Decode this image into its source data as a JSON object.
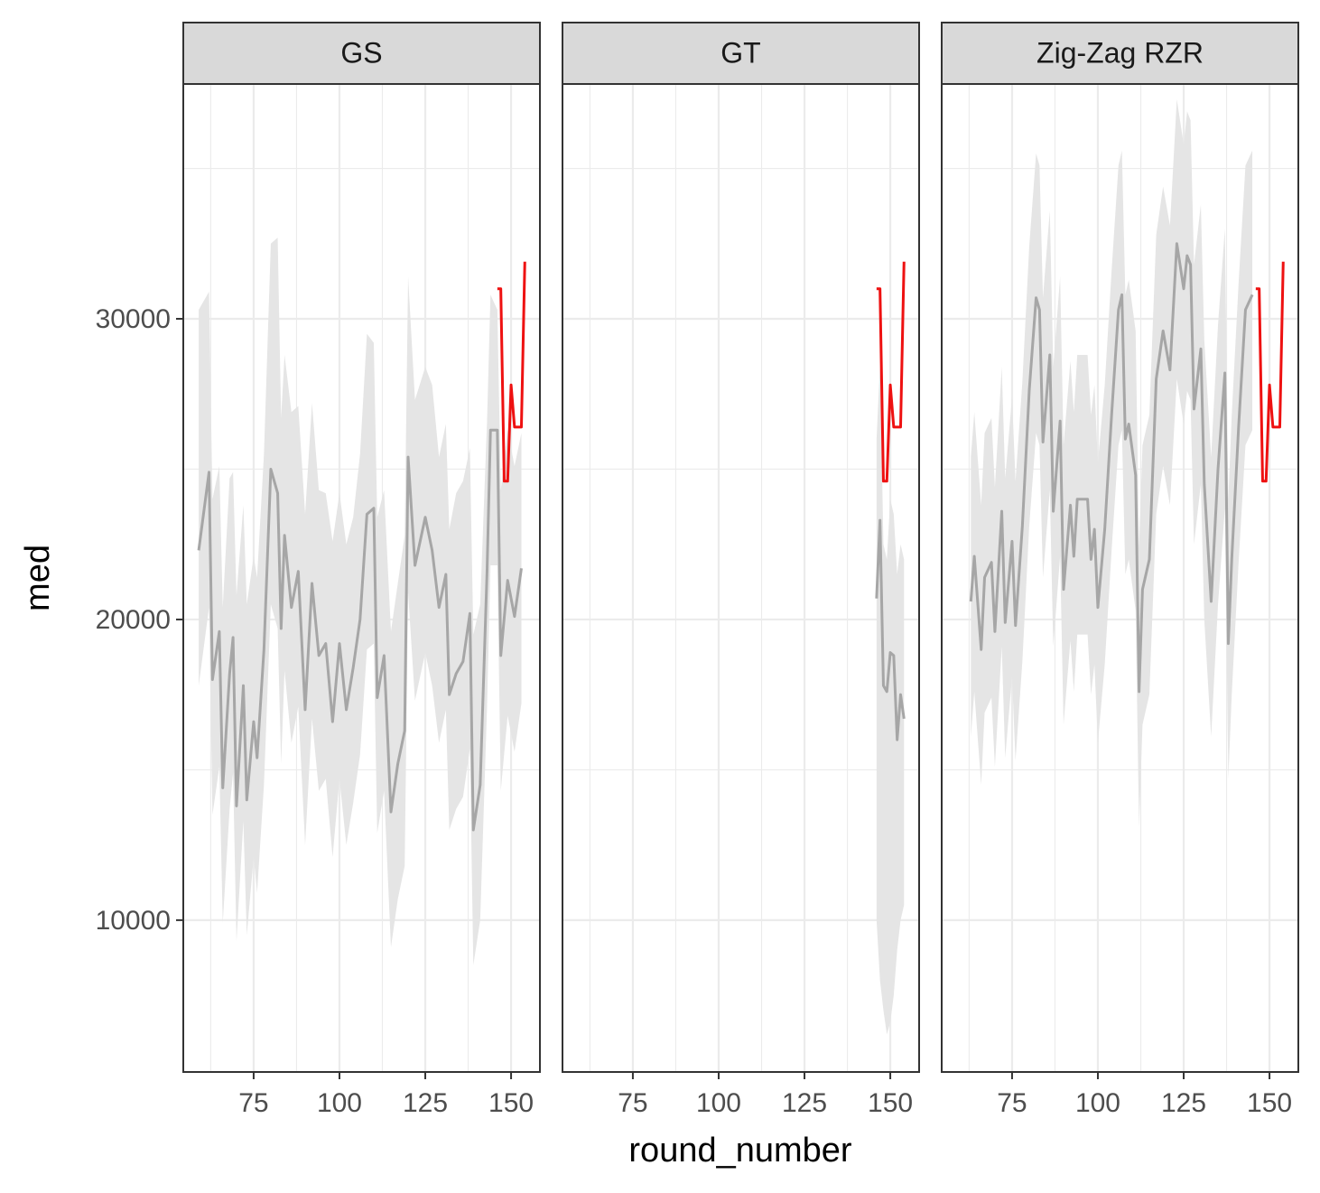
{
  "chart_data": [
    {
      "type": "line",
      "title": "GS",
      "ylabel": "med",
      "xlim": [
        54.5,
        158.4
      ],
      "ylim": [
        4950,
        37810
      ],
      "xticks": [
        75,
        100,
        125,
        150
      ],
      "yticks": [
        10000,
        20000,
        30000
      ],
      "x_minor_grid": [
        62.5,
        87.5,
        112.5,
        137.5
      ],
      "y_minor_grid": [
        15000,
        25000,
        35000
      ],
      "grid": true,
      "series": [
        {
          "color": "#a6a6a6",
          "band_color": "#e5e5e5",
          "x": [
            59,
            62,
            63,
            65,
            66,
            68,
            69,
            70,
            72,
            73,
            75,
            76,
            78,
            80,
            82,
            83,
            84,
            86,
            88,
            90,
            92,
            94,
            96,
            98,
            100,
            102,
            104,
            106,
            108,
            110,
            111,
            113,
            115,
            117,
            119,
            120,
            122,
            125,
            127,
            129,
            131,
            132,
            134,
            136,
            138,
            139,
            141,
            143,
            144,
            146,
            147,
            149,
            151,
            153
          ],
          "values": [
            22300,
            24900,
            18000,
            19600,
            14400,
            18200,
            19400,
            13800,
            17800,
            14000,
            16600,
            15400,
            19000,
            25000,
            24200,
            19700,
            22800,
            20400,
            21600,
            17000,
            21200,
            18800,
            19200,
            16600,
            19200,
            17000,
            18400,
            20000,
            23500,
            23700,
            17400,
            18800,
            13600,
            15200,
            16300,
            25400,
            21800,
            23400,
            22300,
            20400,
            21500,
            17500,
            18200,
            18600,
            20200,
            13000,
            14500,
            21600,
            26300,
            26300,
            18800,
            21300,
            20100,
            21700
          ],
          "lower": [
            17800,
            20400,
            13500,
            15100,
            9900,
            13700,
            14900,
            9300,
            13300,
            9500,
            12100,
            10900,
            14500,
            20500,
            19700,
            15200,
            18300,
            15900,
            17100,
            12500,
            16700,
            14300,
            14700,
            12100,
            14700,
            12500,
            13900,
            15500,
            19000,
            19200,
            12900,
            14300,
            9100,
            10700,
            11800,
            20900,
            17300,
            18900,
            17800,
            15900,
            17000,
            13000,
            13700,
            14100,
            15700,
            8500,
            10000,
            17100,
            21800,
            21800,
            14300,
            16800,
            15600,
            17200
          ],
          "upper": [
            30300,
            30900,
            24000,
            25100,
            20400,
            24700,
            24900,
            20800,
            23800,
            20500,
            22100,
            21400,
            25500,
            32500,
            32700,
            26700,
            28800,
            26900,
            27100,
            23500,
            27200,
            24300,
            24200,
            22600,
            24200,
            22500,
            23400,
            25500,
            29500,
            29200,
            23400,
            24300,
            19600,
            21200,
            22800,
            31400,
            27300,
            28400,
            27800,
            25400,
            26500,
            23000,
            24200,
            24600,
            25700,
            19500,
            20500,
            26600,
            30800,
            30300,
            24300,
            26300,
            25100,
            26200
          ]
        },
        {
          "color": "#ee1111",
          "x": [
            146,
            147,
            148,
            149,
            150,
            151,
            152,
            153,
            154
          ],
          "values": [
            31000,
            31000,
            24600,
            24600,
            27800,
            26400,
            26400,
            26400,
            31900
          ]
        }
      ]
    },
    {
      "type": "line",
      "title": "GT",
      "xlabel": "round_number",
      "xlim": [
        54.5,
        158.4
      ],
      "ylim": [
        4950,
        37810
      ],
      "xticks": [
        75,
        100,
        125,
        150
      ],
      "yticks": [
        10000,
        20000,
        30000
      ],
      "x_minor_grid": [
        62.5,
        87.5,
        112.5,
        137.5
      ],
      "y_minor_grid": [
        15000,
        25000,
        35000
      ],
      "grid": true,
      "series": [
        {
          "color": "#a6a6a6",
          "band_color": "#e5e5e5",
          "x": [
            146,
            147,
            148,
            149,
            150,
            151,
            152,
            153,
            154
          ],
          "values": [
            20700,
            23300,
            17800,
            17600,
            18900,
            18800,
            16000,
            17500,
            16700
          ],
          "lower": [
            10000,
            8000,
            7000,
            6200,
            6600,
            7500,
            9000,
            10000,
            10500
          ],
          "upper": [
            26000,
            28500,
            22500,
            22000,
            24000,
            23500,
            21500,
            22500,
            22000
          ]
        },
        {
          "color": "#ee1111",
          "x": [
            146,
            147,
            148,
            149,
            150,
            151,
            152,
            153,
            154
          ],
          "values": [
            31000,
            31000,
            24600,
            24600,
            27800,
            26400,
            26400,
            26400,
            31900
          ]
        }
      ]
    },
    {
      "type": "line",
      "title": "Zig-Zag RZR",
      "xlim": [
        54.5,
        158.4
      ],
      "ylim": [
        4950,
        37810
      ],
      "xticks": [
        75,
        100,
        125,
        150
      ],
      "yticks": [
        10000,
        20000,
        30000
      ],
      "x_minor_grid": [
        62.5,
        87.5,
        112.5,
        137.5
      ],
      "y_minor_grid": [
        15000,
        25000,
        35000
      ],
      "grid": true,
      "series": [
        {
          "color": "#a6a6a6",
          "band_color": "#e5e5e5",
          "x": [
            63,
            64,
            66,
            67,
            69,
            70,
            72,
            73,
            75,
            76,
            78,
            80,
            82,
            83,
            84,
            86,
            87,
            89,
            90,
            92,
            93,
            94,
            97,
            98,
            99,
            100,
            102,
            104,
            106,
            107,
            108,
            109,
            111,
            112,
            113,
            115,
            117,
            119,
            121,
            123,
            125,
            126,
            127,
            128,
            130,
            131,
            133,
            135,
            137,
            138,
            139,
            141,
            143,
            145
          ],
          "values": [
            20600,
            22100,
            19000,
            21400,
            21900,
            19600,
            23600,
            19900,
            22600,
            19800,
            23100,
            27600,
            30700,
            30300,
            25900,
            28800,
            23600,
            26600,
            21000,
            23800,
            22100,
            24000,
            24000,
            22000,
            23000,
            20400,
            23000,
            26800,
            30300,
            30800,
            26000,
            26500,
            24800,
            17600,
            21000,
            22000,
            28000,
            29600,
            28300,
            32500,
            31000,
            32100,
            31800,
            27000,
            29000,
            24500,
            20600,
            25000,
            28200,
            19200,
            22000,
            26400,
            30300,
            30800
          ],
          "lower": [
            16100,
            17600,
            14500,
            16900,
            17400,
            15100,
            19100,
            15400,
            18100,
            15300,
            18600,
            23100,
            26200,
            25800,
            21400,
            24300,
            19100,
            22100,
            16500,
            19300,
            17600,
            19500,
            19500,
            17500,
            18500,
            15900,
            18500,
            22300,
            25800,
            26300,
            21500,
            22000,
            20300,
            13100,
            16500,
            17500,
            23500,
            25100,
            23800,
            28000,
            26500,
            27600,
            27300,
            22500,
            24500,
            20000,
            16100,
            20500,
            23700,
            14700,
            17500,
            21900,
            25800,
            26300
          ],
          "upper": [
            25400,
            26900,
            23800,
            26200,
            26700,
            24400,
            28400,
            24700,
            27400,
            24600,
            27900,
            32400,
            35500,
            35100,
            30700,
            33600,
            28400,
            31400,
            25800,
            28600,
            26900,
            28800,
            28800,
            26800,
            27800,
            25200,
            27800,
            31600,
            35100,
            35600,
            30800,
            31300,
            29600,
            22400,
            25800,
            26800,
            32800,
            34400,
            33100,
            37300,
            35800,
            36900,
            36600,
            31800,
            33800,
            29300,
            25400,
            29800,
            33000,
            24000,
            26800,
            31200,
            35100,
            35600
          ]
        },
        {
          "color": "#ee1111",
          "x": [
            146,
            147,
            148,
            149,
            150,
            151,
            152,
            153,
            154
          ],
          "values": [
            31000,
            31000,
            24600,
            24600,
            27800,
            26400,
            26400,
            26400,
            31900
          ]
        }
      ]
    }
  ]
}
